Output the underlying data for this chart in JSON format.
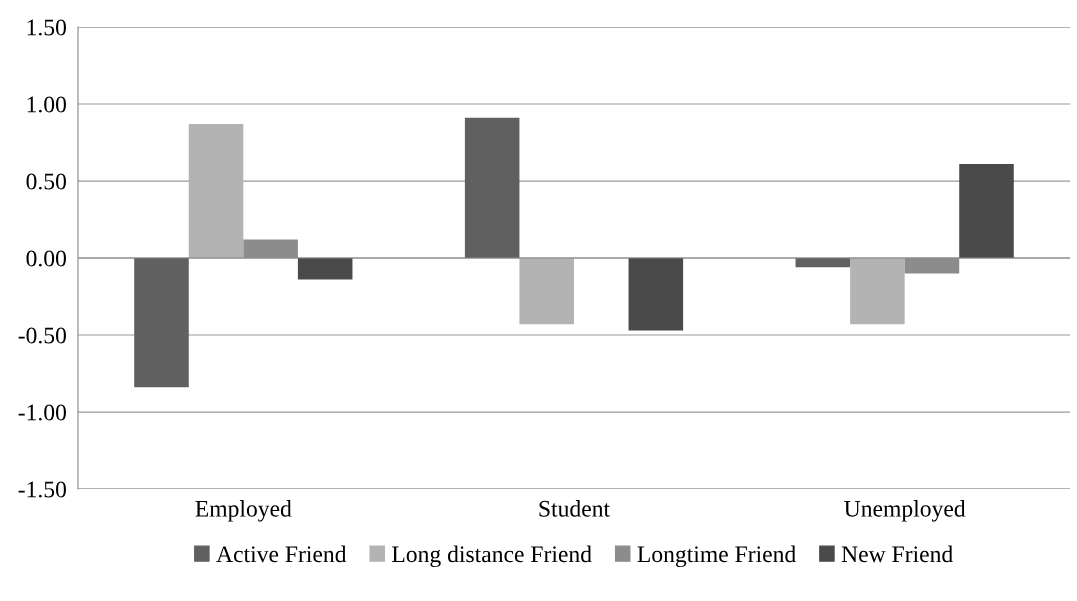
{
  "chart_data": {
    "type": "bar",
    "categories": [
      "Employed",
      "Student",
      "Unemployed"
    ],
    "series": [
      {
        "name": "Active Friend",
        "color": "#606060",
        "values": [
          -0.84,
          0.91,
          -0.06
        ]
      },
      {
        "name": "Long distance Friend",
        "color": "#b3b3b3",
        "values": [
          0.87,
          -0.43,
          -0.43
        ]
      },
      {
        "name": "Longtime Friend",
        "color": "#8c8c8c",
        "values": [
          0.12,
          0,
          -0.1
        ]
      },
      {
        "name": "New Friend",
        "color": "#4a4a4a",
        "values": [
          -0.14,
          -0.47,
          0.61
        ]
      }
    ],
    "ylim": [
      -1.5,
      1.5
    ],
    "yticks": [
      {
        "value": -1.5,
        "label": "-1.50"
      },
      {
        "value": -1.0,
        "label": "-1.00"
      },
      {
        "value": -0.5,
        "label": "-0.50"
      },
      {
        "value": 0,
        "label": "0.00"
      },
      {
        "value": 0.5,
        "label": "0.50"
      },
      {
        "value": 1.0,
        "label": "1.00"
      },
      {
        "value": 1.5,
        "label": "1.50"
      }
    ],
    "grid": "y",
    "legend": "bottom"
  }
}
